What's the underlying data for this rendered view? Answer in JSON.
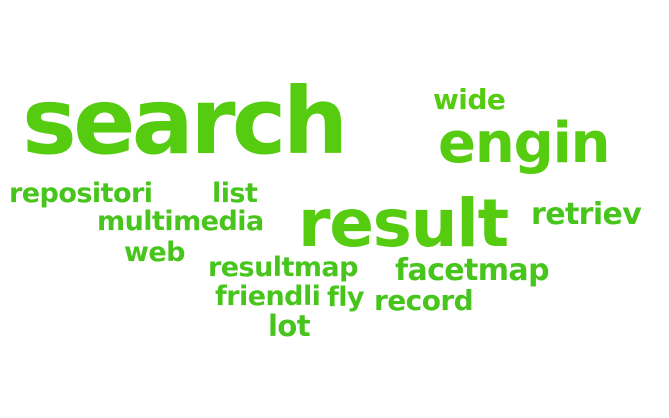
{
  "word_cloud": {
    "colors": {
      "primary_green": "#55cc10",
      "secondary_green": "#48c51c",
      "background": "#ffffff"
    },
    "words": {
      "search": "search",
      "engin": "engin",
      "wide": "wide",
      "result": "result",
      "repositori": "repositori",
      "list": "list",
      "multimedia": "multimedia",
      "retriev": "retriev",
      "web": "web",
      "resultmap": "resultmap",
      "facetmap": "facetmap",
      "friendli": "friendli",
      "fly": "fly",
      "record": "record",
      "lot": "lot"
    }
  }
}
